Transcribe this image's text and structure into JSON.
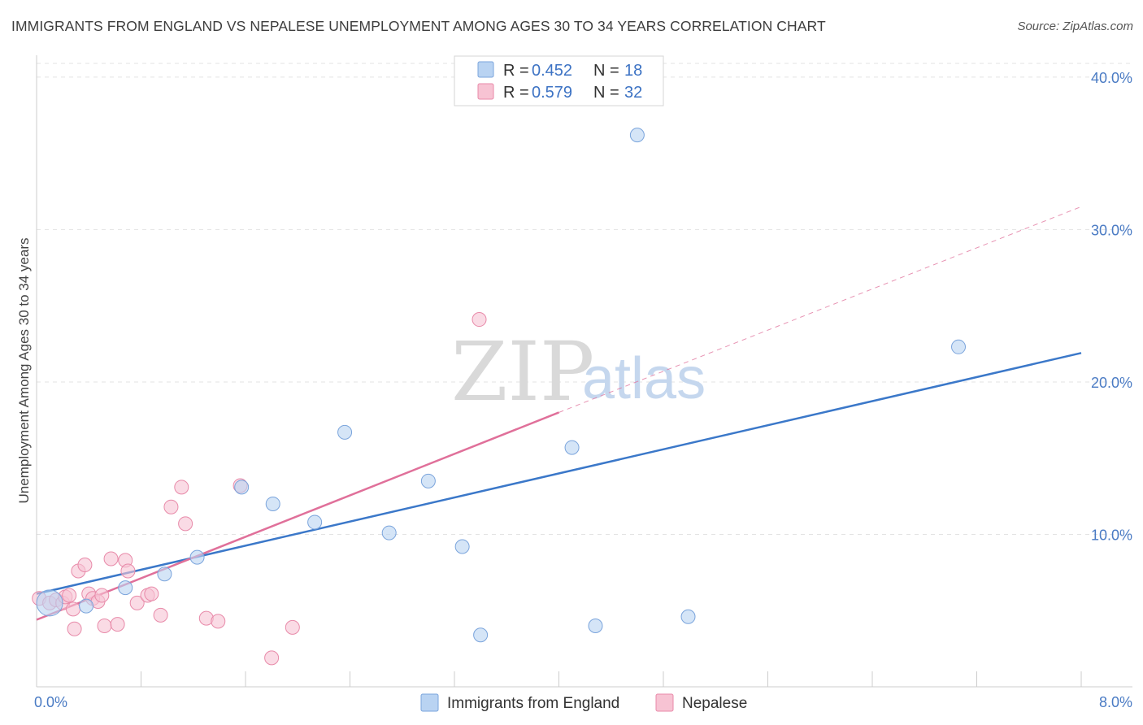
{
  "header": {
    "title": "IMMIGRANTS FROM ENGLAND VS NEPALESE UNEMPLOYMENT AMONG AGES 30 TO 34 YEARS CORRELATION CHART",
    "source": "Source: ZipAtlas.com"
  },
  "watermark": {
    "zip": "ZIP",
    "atlas": "atlas"
  },
  "colors": {
    "england_fill": "#b9d3f2",
    "england_stroke": "#7aa4dc",
    "england_line": "#3b78c9",
    "nepalese_fill": "#f7c3d3",
    "nepalese_stroke": "#e88aa9",
    "nepalese_line": "#e0709a",
    "grid": "#e3e3e3",
    "axis": "#cccccc"
  },
  "legend": {
    "rows": [
      {
        "r_label": "R =",
        "r_value": "0.452",
        "n_label": "N =",
        "n_value": "18"
      },
      {
        "r_label": "R =",
        "r_value": "0.579",
        "n_label": "N =",
        "n_value": "32"
      }
    ]
  },
  "chart_data": {
    "type": "scatter",
    "title": "IMMIGRANTS FROM ENGLAND VS NEPALESE UNEMPLOYMENT AMONG AGES 30 TO 34 YEARS CORRELATION CHART",
    "xlabel": "",
    "ylabel": "Unemployment Among Ages 30 to 34 years",
    "xlim": [
      0,
      8
    ],
    "ylim": [
      0,
      40.9
    ],
    "x_tick_labels": [
      "0.0%",
      "8.0%"
    ],
    "y_ticks": [
      10,
      20,
      30,
      40
    ],
    "y_tick_labels": [
      "10.0%",
      "20.0%",
      "30.0%",
      "40.0%"
    ],
    "legend_position": "top-center",
    "series": [
      {
        "name": "Immigrants from England",
        "R": 0.452,
        "N": 18,
        "points": [
          [
            0.1,
            5.5
          ],
          [
            0.38,
            5.3
          ],
          [
            0.68,
            6.5
          ],
          [
            0.98,
            7.4
          ],
          [
            1.23,
            8.5
          ],
          [
            1.57,
            13.1
          ],
          [
            1.81,
            12.0
          ],
          [
            2.13,
            10.8
          ],
          [
            2.36,
            16.7
          ],
          [
            2.7,
            10.1
          ],
          [
            3.0,
            13.5
          ],
          [
            3.26,
            9.2
          ],
          [
            3.4,
            3.4
          ],
          [
            4.1,
            15.7
          ],
          [
            4.28,
            4.0
          ],
          [
            4.6,
            36.2
          ],
          [
            4.99,
            4.6
          ],
          [
            7.06,
            22.3
          ]
        ],
        "trend": {
          "x0": 0.0,
          "y0": 6.1,
          "x1": 8.0,
          "y1": 21.9
        }
      },
      {
        "name": "Nepalese",
        "R": 0.579,
        "N": 32,
        "points": [
          [
            0.02,
            5.8
          ],
          [
            0.1,
            5.5
          ],
          [
            0.15,
            5.7
          ],
          [
            0.2,
            5.5
          ],
          [
            0.22,
            5.9
          ],
          [
            0.28,
            5.1
          ],
          [
            0.25,
            6.0
          ],
          [
            0.29,
            3.8
          ],
          [
            0.32,
            7.6
          ],
          [
            0.37,
            8.0
          ],
          [
            0.4,
            6.1
          ],
          [
            0.43,
            5.8
          ],
          [
            0.47,
            5.6
          ],
          [
            0.5,
            6.0
          ],
          [
            0.52,
            4.0
          ],
          [
            0.57,
            8.4
          ],
          [
            0.62,
            4.1
          ],
          [
            0.68,
            8.3
          ],
          [
            0.7,
            7.6
          ],
          [
            0.77,
            5.5
          ],
          [
            0.85,
            6.0
          ],
          [
            0.88,
            6.1
          ],
          [
            0.95,
            4.7
          ],
          [
            1.03,
            11.8
          ],
          [
            1.11,
            13.1
          ],
          [
            1.14,
            10.7
          ],
          [
            1.3,
            4.5
          ],
          [
            1.39,
            4.3
          ],
          [
            1.56,
            13.2
          ],
          [
            1.8,
            1.9
          ],
          [
            1.96,
            3.9
          ],
          [
            3.39,
            24.1
          ]
        ],
        "trend": {
          "x0": 0.0,
          "y0": 4.4,
          "x1": 4.0,
          "y1": 18.0
        },
        "trend_extension": {
          "x0": 4.0,
          "y0": 18.0,
          "x1": 8.0,
          "y1": 31.5
        }
      }
    ]
  }
}
